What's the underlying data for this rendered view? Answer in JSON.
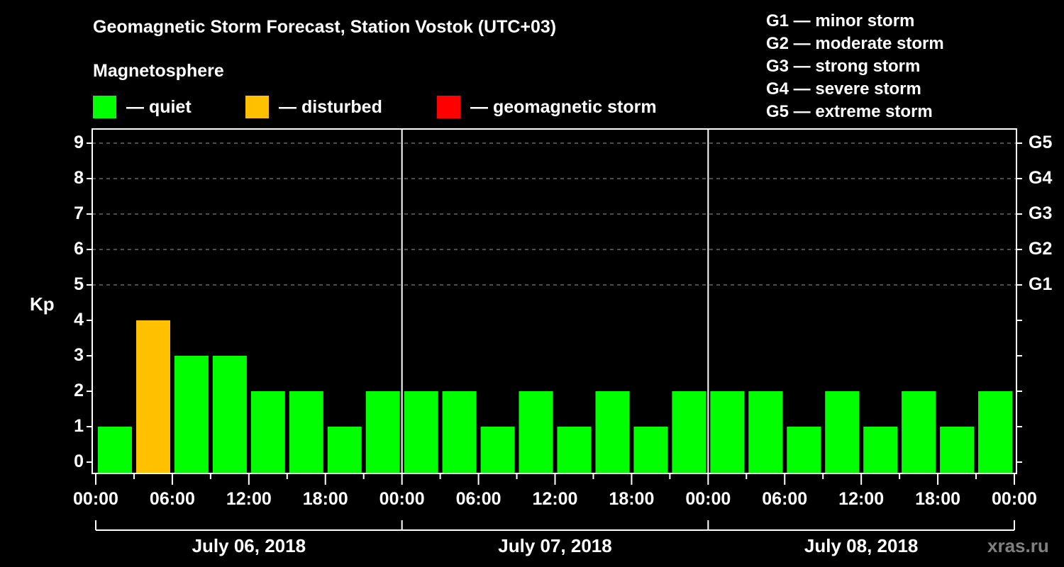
{
  "header": {
    "title": "Geomagnetic Storm Forecast, Station Vostok (UTC+03)",
    "subtitle": "Magnetosphere"
  },
  "legend": {
    "items": [
      {
        "label": "— quiet",
        "color": "#00ff00"
      },
      {
        "label": "— disturbed",
        "color": "#ffc000"
      },
      {
        "label": "— geomagnetic storm",
        "color": "#ff0000"
      }
    ]
  },
  "storm_scale": [
    "G1 — minor storm",
    "G2 — moderate storm",
    "G3 — strong storm",
    "G4 — severe storm",
    "G5 — extreme storm"
  ],
  "axes": {
    "ylabel": "Kp",
    "yticks": [
      "0",
      "1",
      "2",
      "3",
      "4",
      "5",
      "6",
      "7",
      "8",
      "9"
    ],
    "gticks": [
      {
        "label": "G1",
        "kp": 5
      },
      {
        "label": "G2",
        "kp": 6
      },
      {
        "label": "G3",
        "kp": 7
      },
      {
        "label": "G4",
        "kp": 8
      },
      {
        "label": "G5",
        "kp": 9
      }
    ],
    "xticks": [
      "00:00",
      "06:00",
      "12:00",
      "18:00",
      "00:00",
      "06:00",
      "12:00",
      "18:00",
      "00:00",
      "06:00",
      "12:00",
      "18:00",
      "00:00"
    ],
    "days": [
      "July 06, 2018",
      "July 07, 2018",
      "July 08, 2018"
    ]
  },
  "watermark": "xras.ru",
  "chart_data": {
    "type": "bar",
    "title": "Geomagnetic Storm Forecast, Station Vostok (UTC+03)",
    "subtitle": "Magnetosphere",
    "xlabel": "",
    "ylabel": "Kp",
    "ylim": [
      0,
      9
    ],
    "grid": "dashed horizontal at Kp 5-9",
    "bar_interval_hours": 3,
    "categories": [
      "July 06 00:00",
      "July 06 03:00",
      "July 06 06:00",
      "July 06 09:00",
      "July 06 12:00",
      "July 06 15:00",
      "July 06 18:00",
      "July 06 21:00",
      "July 07 00:00",
      "July 07 03:00",
      "July 07 06:00",
      "July 07 09:00",
      "July 07 12:00",
      "July 07 15:00",
      "July 07 18:00",
      "July 07 21:00",
      "July 08 00:00",
      "July 08 03:00",
      "July 08 06:00",
      "July 08 09:00",
      "July 08 12:00",
      "July 08 15:00",
      "July 08 18:00",
      "July 08 21:00"
    ],
    "values": [
      1,
      4,
      3,
      3,
      2,
      2,
      1,
      2,
      2,
      2,
      1,
      2,
      1,
      2,
      1,
      2,
      2,
      2,
      1,
      2,
      1,
      2,
      1,
      2
    ],
    "status": [
      "quiet",
      "disturbed",
      "quiet",
      "quiet",
      "quiet",
      "quiet",
      "quiet",
      "quiet",
      "quiet",
      "quiet",
      "quiet",
      "quiet",
      "quiet",
      "quiet",
      "quiet",
      "quiet",
      "quiet",
      "quiet",
      "quiet",
      "quiet",
      "quiet",
      "quiet",
      "quiet",
      "quiet"
    ],
    "legend": [
      "quiet",
      "disturbed",
      "geomagnetic storm"
    ],
    "right_axis": {
      "G1": 5,
      "G2": 6,
      "G3": 7,
      "G4": 8,
      "G5": 9
    }
  }
}
